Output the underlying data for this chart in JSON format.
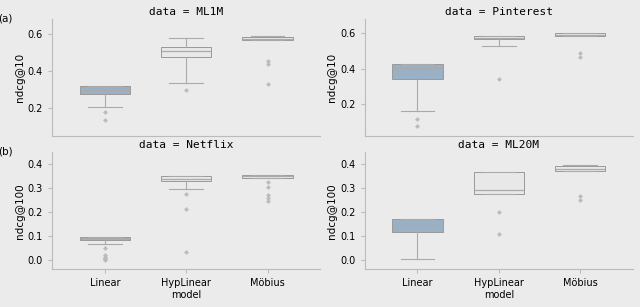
{
  "panels": [
    {
      "title": "data = ML1M",
      "ylabel": "ndcg@10",
      "panel_label": "(a)",
      "ylim": [
        0.05,
        0.68
      ],
      "yticks": [
        0.2,
        0.4,
        0.6
      ],
      "boxes": [
        {
          "color": "#9ab0c4",
          "q1": 0.278,
          "median": 0.3,
          "q3": 0.318,
          "whislo": 0.207,
          "whishi": 0.207,
          "fliers": [
            0.18,
            0.135
          ]
        },
        {
          "color": "#e8e8e8",
          "q1": 0.475,
          "median": 0.51,
          "q3": 0.53,
          "whislo": 0.335,
          "whishi": 0.58,
          "fliers": [
            0.298
          ]
        },
        {
          "color": "#e8e8e8",
          "q1": 0.57,
          "median": 0.575,
          "q3": 0.583,
          "whislo": 0.583,
          "whishi": 0.59,
          "fliers": [
            0.455,
            0.44,
            0.33
          ]
        }
      ]
    },
    {
      "title": "data = Pinterest",
      "ylabel": "ndcg@10",
      "panel_label": null,
      "ylim": [
        0.02,
        0.68
      ],
      "yticks": [
        0.2,
        0.4,
        0.6
      ],
      "boxes": [
        {
          "color": "#9ab0c4",
          "q1": 0.342,
          "median": 0.405,
          "q3": 0.428,
          "whislo": 0.162,
          "whishi": 0.162,
          "fliers": [
            0.115,
            0.075
          ]
        },
        {
          "color": "#e8e8e8",
          "q1": 0.565,
          "median": 0.573,
          "q3": 0.582,
          "whislo": 0.53,
          "whishi": 0.53,
          "fliers": [
            0.342
          ]
        },
        {
          "color": "#e8e8e8",
          "q1": 0.585,
          "median": 0.592,
          "q3": 0.6,
          "whislo": 0.6,
          "whishi": 0.601,
          "fliers": [
            0.49,
            0.468
          ]
        }
      ]
    },
    {
      "title": "data = Netflix",
      "ylabel": "ndcg@100",
      "panel_label": "(b)",
      "ylim": [
        -0.04,
        0.45
      ],
      "yticks": [
        0.0,
        0.1,
        0.2,
        0.3,
        0.4
      ],
      "boxes": [
        {
          "color": "#9ab0c4",
          "q1": 0.082,
          "median": 0.09,
          "q3": 0.095,
          "whislo": 0.065,
          "whishi": 0.065,
          "fliers": [
            0.05,
            0.02,
            0.01,
            0.008,
            0.004,
            0.001
          ]
        },
        {
          "color": "#e8e8e8",
          "q1": 0.33,
          "median": 0.34,
          "q3": 0.35,
          "whislo": 0.298,
          "whishi": 0.298,
          "fliers": [
            0.278,
            0.215,
            0.035
          ]
        },
        {
          "color": "#e8e8e8",
          "q1": 0.342,
          "median": 0.35,
          "q3": 0.357,
          "whislo": 0.355,
          "whishi": 0.355,
          "fliers": [
            0.325,
            0.305,
            0.272,
            0.258,
            0.248
          ]
        }
      ]
    },
    {
      "title": "data = ML20M",
      "ylabel": "ndcg@100",
      "panel_label": null,
      "ylim": [
        -0.04,
        0.45
      ],
      "yticks": [
        0.0,
        0.1,
        0.2,
        0.3,
        0.4
      ],
      "boxes": [
        {
          "color": "#9ab0c4",
          "q1": 0.118,
          "median": 0.148,
          "q3": 0.17,
          "whislo": 0.005,
          "whishi": 0.005,
          "fliers": []
        },
        {
          "color": "#e8e8e8",
          "q1": 0.278,
          "median": 0.292,
          "q3": 0.368,
          "whislo": 0.284,
          "whishi": 0.284,
          "fliers": [
            0.108,
            0.2
          ]
        },
        {
          "color": "#e8e8e8",
          "q1": 0.372,
          "median": 0.382,
          "q3": 0.392,
          "whislo": 0.392,
          "whishi": 0.398,
          "fliers": [
            0.268,
            0.252
          ]
        }
      ]
    }
  ],
  "xtick_labels": [
    "Linear",
    "HypLinear\nmodel",
    "Möbius"
  ],
  "box_width": 0.62,
  "edge_color": "#999999",
  "whisker_color": "#aaaaaa",
  "median_color": "#aaaaaa",
  "flier_color": "#bbbbbb",
  "flier_marker": "D",
  "bg_color": "#ebebeb",
  "title_fontsize": 8,
  "label_fontsize": 7.5,
  "tick_fontsize": 7
}
